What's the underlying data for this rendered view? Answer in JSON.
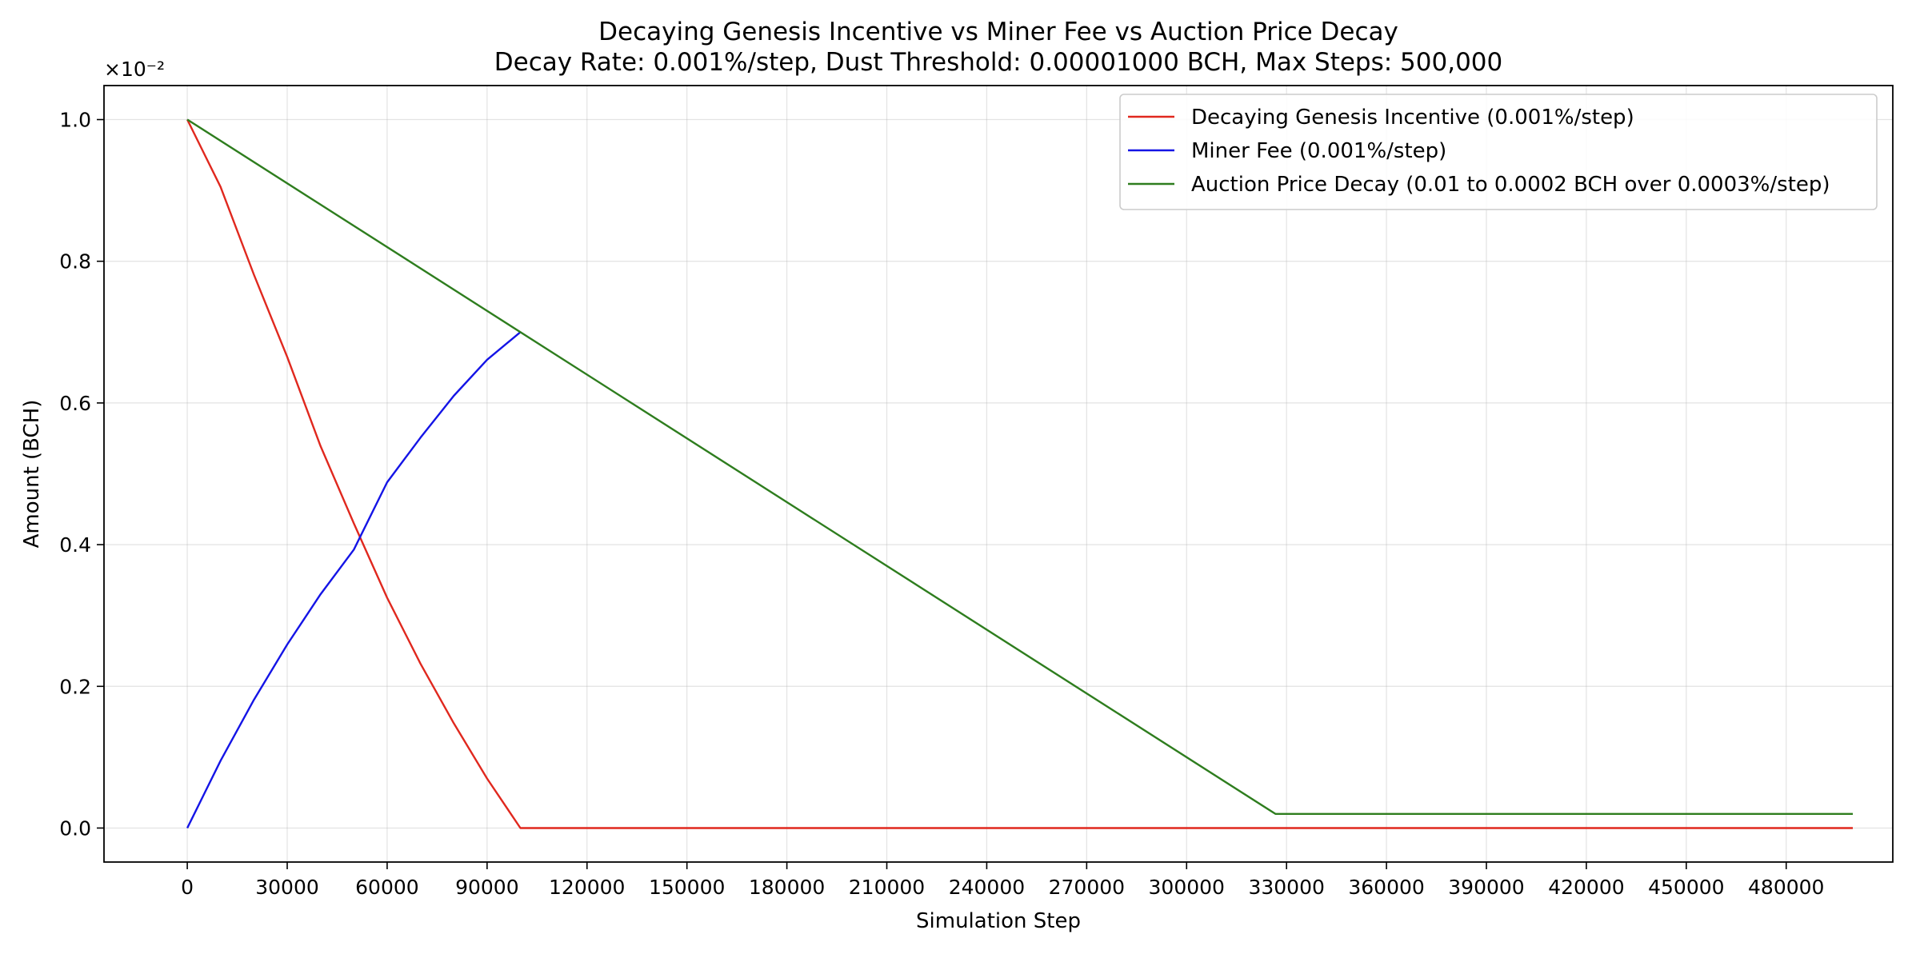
{
  "chart_data": {
    "type": "line",
    "title": "Decaying Genesis Incentive vs Miner Fee vs Auction Price Decay",
    "subtitle": "Decay Rate: 0.001%/step, Dust Threshold: 0.00001000 BCH, Max Steps: 500,000",
    "xlabel": "Simulation Step",
    "ylabel": "Amount (BCH)",
    "y_offset_text": "×10⁻²",
    "y_scale_factor": 0.01,
    "xlim": [
      -25000,
      512000
    ],
    "ylim": [
      -0.00048,
      0.01048
    ],
    "x_ticks": [
      0,
      30000,
      60000,
      90000,
      120000,
      150000,
      180000,
      210000,
      240000,
      270000,
      300000,
      330000,
      360000,
      390000,
      420000,
      450000,
      480000
    ],
    "y_ticks": [
      0.0,
      0.002,
      0.004,
      0.006,
      0.008,
      0.01
    ],
    "y_tick_labels": [
      "0.0",
      "0.2",
      "0.4",
      "0.6",
      "0.8",
      "1.0"
    ],
    "grid": true,
    "legend_position": "top-right",
    "series": [
      {
        "name": "Decaying Genesis Incentive (0.001%/step)",
        "color": "#e0281e",
        "x": [
          0,
          10000,
          20000,
          30000,
          40000,
          50000,
          60000,
          70000,
          80000,
          90000,
          100000,
          500000
        ],
        "y": [
          0.01,
          0.00905,
          0.00781,
          0.00665,
          0.00539,
          0.0043,
          0.00325,
          0.00232,
          0.00148,
          0.0007,
          0.0,
          0.0
        ]
      },
      {
        "name": "Miner Fee (0.001%/step)",
        "color": "#1414e6",
        "x": [
          0,
          10000,
          20000,
          30000,
          40000,
          50000,
          60000,
          70000,
          80000,
          90000,
          100000
        ],
        "y": [
          0.0,
          0.00095,
          0.00181,
          0.00259,
          0.0033,
          0.00393,
          0.00488,
          0.00551,
          0.0061,
          0.00661,
          0.007
        ]
      },
      {
        "name": "Auction Price Decay (0.01 to 0.0002 BCH over 0.0003%/step)",
        "color": "#2e7d1e",
        "x": [
          0,
          326667,
          500000
        ],
        "y": [
          0.01,
          0.0002,
          0.0002
        ]
      }
    ]
  }
}
